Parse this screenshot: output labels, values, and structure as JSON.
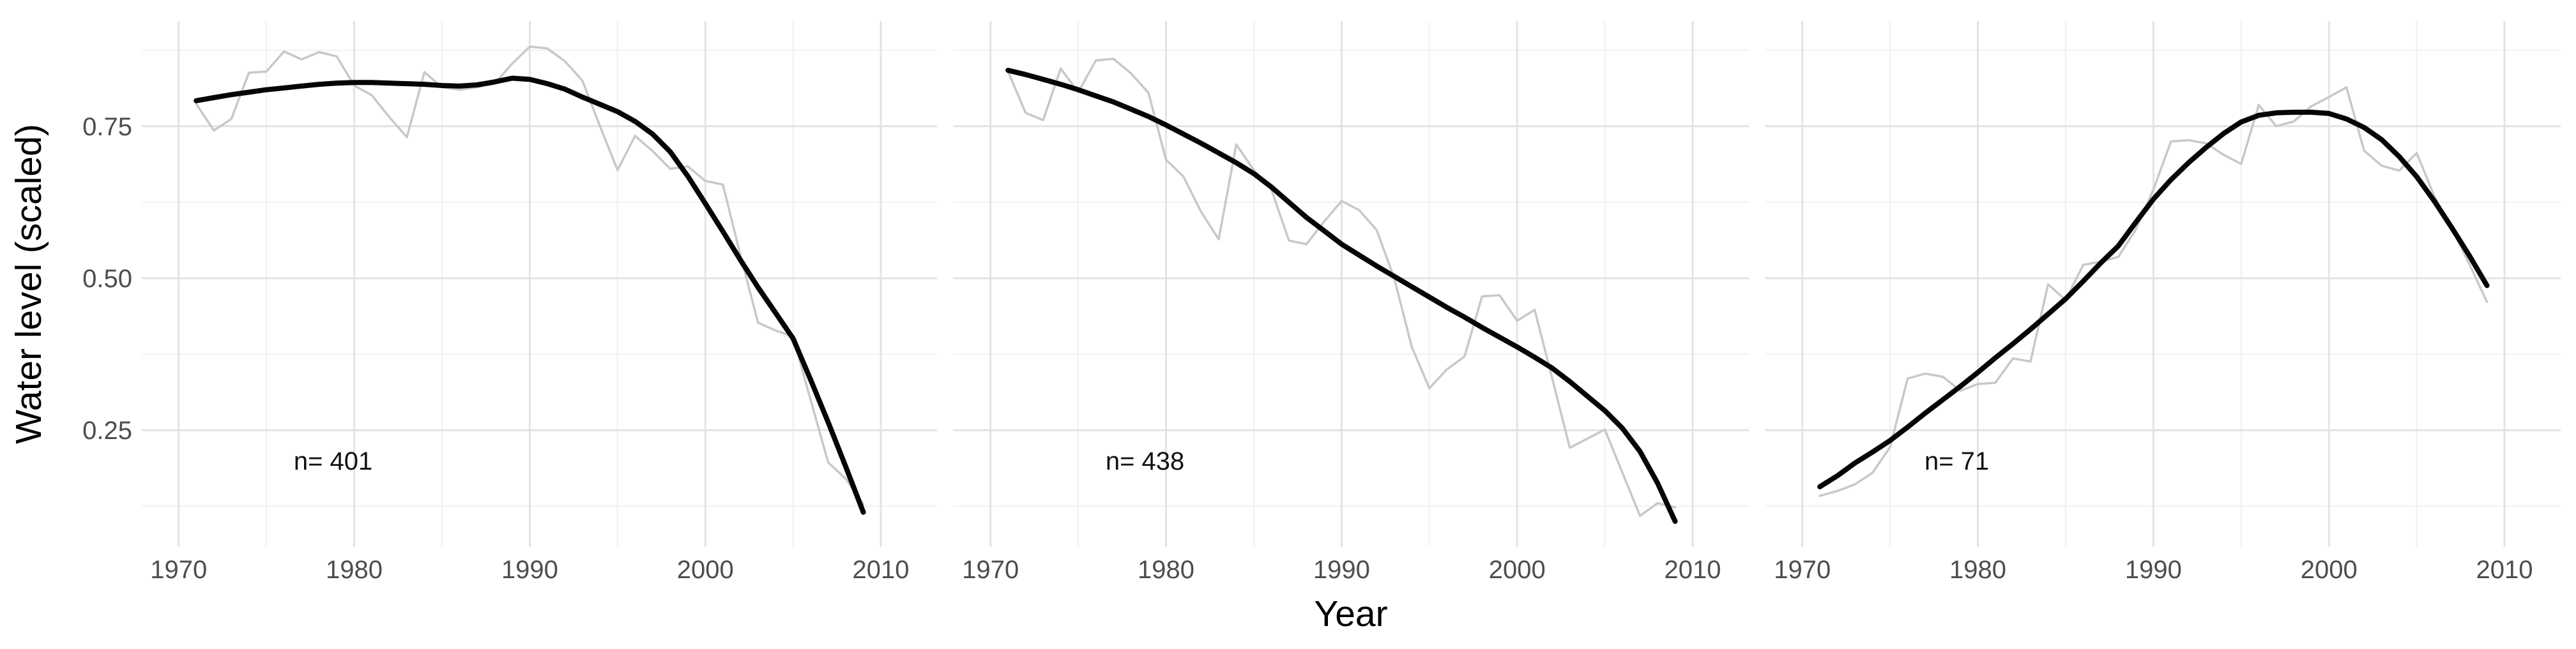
{
  "chart_data": {
    "type": "line",
    "title": "",
    "xlabel": "Year",
    "ylabel": "Water level (scaled)",
    "facets": 3,
    "xlim": [
      1967.9,
      2013.2
    ],
    "ylim": [
      0.058,
      0.923
    ],
    "grid": "on",
    "legend": "none",
    "x_ticks": [
      1970,
      1980,
      1990,
      2000,
      2010
    ],
    "x_tick_labels": [
      "1970",
      "1980",
      "1990",
      "2000",
      "2010"
    ],
    "x_minor": [
      1975,
      1985,
      1995,
      2005
    ],
    "y_ticks": [
      0.25,
      0.5,
      0.75
    ],
    "y_tick_labels": [
      "0.25",
      "0.50",
      "0.75"
    ],
    "y_minor": [
      0.125,
      0.375,
      0.625,
      0.875
    ],
    "annotation_pos": {
      "year": 1978.8,
      "value": 0.185
    },
    "colors": {
      "raw": "#c8c8c8",
      "smooth": "#050505",
      "grid_major": "#e3e3e3",
      "grid_minor": "#f1f1f1",
      "tick_text": "#4d4d4d",
      "axis_title": "#000000",
      "annotation": "#111111",
      "background": "#ffffff"
    },
    "years": [
      1971,
      1972,
      1973,
      1974,
      1975,
      1976,
      1977,
      1978,
      1979,
      1980,
      1981,
      1982,
      1983,
      1984,
      1985,
      1986,
      1987,
      1988,
      1989,
      1990,
      1991,
      1992,
      1993,
      1994,
      1995,
      1996,
      1997,
      1998,
      1999,
      2000,
      2001,
      2002,
      2003,
      2004,
      2005,
      2006,
      2007,
      2008,
      2009
    ],
    "panels": [
      {
        "annotation": "n= 401",
        "n": 401,
        "raw": [
          0.787,
          0.743,
          0.762,
          0.838,
          0.84,
          0.873,
          0.86,
          0.872,
          0.865,
          0.817,
          0.801,
          0.765,
          0.732,
          0.839,
          0.814,
          0.81,
          0.814,
          0.82,
          0.853,
          0.881,
          0.878,
          0.857,
          0.825,
          0.75,
          0.678,
          0.734,
          0.709,
          0.68,
          0.684,
          0.66,
          0.654,
          0.538,
          0.427,
          0.414,
          0.404,
          0.3,
          0.197,
          0.17,
          0.128
        ],
        "smooth": [
          0.792,
          0.797,
          0.802,
          0.806,
          0.81,
          0.813,
          0.816,
          0.819,
          0.821,
          0.822,
          0.822,
          0.821,
          0.82,
          0.819,
          0.817,
          0.816,
          0.818,
          0.823,
          0.829,
          0.827,
          0.82,
          0.811,
          0.798,
          0.786,
          0.774,
          0.758,
          0.737,
          0.708,
          0.668,
          0.623,
          0.577,
          0.53,
          0.485,
          0.443,
          0.401,
          0.333,
          0.263,
          0.19,
          0.115
        ]
      },
      {
        "annotation": "n= 438",
        "n": 438,
        "raw": [
          0.84,
          0.772,
          0.76,
          0.845,
          0.806,
          0.858,
          0.861,
          0.837,
          0.805,
          0.695,
          0.667,
          0.609,
          0.564,
          0.72,
          0.678,
          0.646,
          0.562,
          0.556,
          0.593,
          0.627,
          0.612,
          0.579,
          0.5,
          0.387,
          0.319,
          0.35,
          0.371,
          0.47,
          0.472,
          0.43,
          0.448,
          0.335,
          0.221,
          0.236,
          0.251,
          0.18,
          0.109,
          0.13,
          0.123
        ],
        "smooth": [
          0.842,
          0.835,
          0.827,
          0.819,
          0.81,
          0.8,
          0.79,
          0.778,
          0.766,
          0.752,
          0.737,
          0.722,
          0.706,
          0.69,
          0.672,
          0.65,
          0.625,
          0.6,
          0.578,
          0.556,
          0.538,
          0.52,
          0.503,
          0.486,
          0.469,
          0.452,
          0.436,
          0.419,
          0.403,
          0.387,
          0.37,
          0.352,
          0.33,
          0.306,
          0.282,
          0.253,
          0.215,
          0.163,
          0.1
        ]
      },
      {
        "annotation": "n= 71",
        "n": 71,
        "raw": [
          0.142,
          0.15,
          0.161,
          0.18,
          0.222,
          0.335,
          0.343,
          0.338,
          0.315,
          0.326,
          0.328,
          0.368,
          0.363,
          0.49,
          0.464,
          0.522,
          0.527,
          0.535,
          0.58,
          0.646,
          0.725,
          0.727,
          0.722,
          0.703,
          0.688,
          0.785,
          0.75,
          0.758,
          0.783,
          0.798,
          0.814,
          0.71,
          0.685,
          0.677,
          0.706,
          0.635,
          0.582,
          0.523,
          0.461
        ],
        "smooth": [
          0.157,
          0.175,
          0.196,
          0.214,
          0.233,
          0.255,
          0.278,
          0.3,
          0.322,
          0.345,
          0.369,
          0.392,
          0.416,
          0.441,
          0.466,
          0.495,
          0.525,
          0.553,
          0.592,
          0.63,
          0.662,
          0.69,
          0.715,
          0.738,
          0.757,
          0.768,
          0.772,
          0.773,
          0.773,
          0.771,
          0.762,
          0.748,
          0.728,
          0.7,
          0.667,
          0.627,
          0.583,
          0.537,
          0.488
        ]
      }
    ]
  }
}
